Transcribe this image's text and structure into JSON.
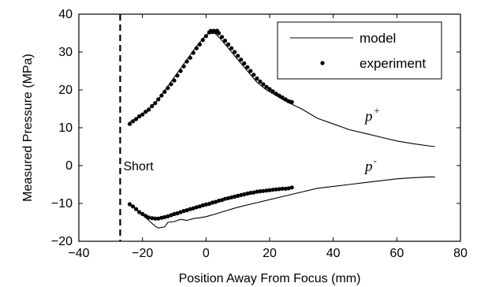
{
  "chart_data": {
    "type": "line",
    "title": "",
    "xlabel": "Position Away From Focus (mm)",
    "ylabel": "Measured Pressure (MPa)",
    "xlim": [
      -40,
      80
    ],
    "ylim": [
      -20,
      40
    ],
    "xticks": [
      -40,
      -20,
      0,
      20,
      40,
      60,
      80
    ],
    "yticks": [
      -20,
      -10,
      0,
      10,
      20,
      30,
      40
    ],
    "grid": false,
    "legend": {
      "position": "top-right",
      "entries": [
        "model",
        "experiment"
      ]
    },
    "series": [
      {
        "name": "model",
        "style": "line",
        "segments": [
          [
            [
              -24,
              11.5
            ],
            [
              -21,
              13
            ],
            [
              -18,
              15
            ],
            [
              -15,
              17.5
            ],
            [
              -12,
              21
            ],
            [
              -9,
              24.5
            ],
            [
              -6,
              28
            ],
            [
              -3,
              31.5
            ],
            [
              0,
              34.5
            ],
            [
              2,
              35.5
            ],
            [
              4,
              34
            ],
            [
              7,
              31
            ],
            [
              10,
              28
            ],
            [
              13,
              25
            ],
            [
              16,
              22
            ],
            [
              19,
              20
            ],
            [
              22,
              18.5
            ],
            [
              25,
              17
            ],
            [
              30,
              15
            ],
            [
              35,
              12.5
            ],
            [
              40,
              11
            ],
            [
              45,
              9.5
            ],
            [
              50,
              8.5
            ],
            [
              55,
              7.5
            ],
            [
              60,
              6.5
            ],
            [
              65,
              5.8
            ],
            [
              70,
              5.2
            ],
            [
              72,
              5
            ]
          ],
          [
            [
              -24,
              -10.5
            ],
            [
              -22,
              -11.5
            ],
            [
              -20,
              -13
            ],
            [
              -18,
              -14.5
            ],
            [
              -16,
              -16
            ],
            [
              -15,
              -16.5
            ],
            [
              -13,
              -16.2
            ],
            [
              -12,
              -15
            ],
            [
              -10,
              -14.8
            ],
            [
              -8,
              -14.2
            ],
            [
              -6,
              -14.5
            ],
            [
              -4,
              -14
            ],
            [
              -2,
              -13.8
            ],
            [
              0,
              -13.5
            ],
            [
              3,
              -12.8
            ],
            [
              6,
              -12
            ],
            [
              10,
              -11
            ],
            [
              15,
              -10
            ],
            [
              20,
              -9
            ],
            [
              25,
              -8
            ],
            [
              30,
              -7
            ],
            [
              35,
              -6
            ],
            [
              40,
              -5.5
            ],
            [
              45,
              -5
            ],
            [
              50,
              -4.5
            ],
            [
              55,
              -4
            ],
            [
              60,
              -3.5
            ],
            [
              65,
              -3.2
            ],
            [
              70,
              -3
            ],
            [
              72,
              -3
            ]
          ]
        ]
      },
      {
        "name": "experiment",
        "style": "markers",
        "segments": [
          [
            [
              -24,
              11
            ],
            [
              -23,
              11.7
            ],
            [
              -22,
              12.3
            ],
            [
              -21,
              13
            ],
            [
              -20,
              13.5
            ],
            [
              -19,
              14.2
            ],
            [
              -18,
              14.8
            ],
            [
              -17,
              15.7
            ],
            [
              -16,
              16.5
            ],
            [
              -15,
              17.5
            ],
            [
              -14,
              18.5
            ],
            [
              -13,
              19.5
            ],
            [
              -12,
              20.5
            ],
            [
              -11,
              21.5
            ],
            [
              -10,
              22.5
            ],
            [
              -9,
              23.8
            ],
            [
              -8,
              25
            ],
            [
              -7,
              26.2
            ],
            [
              -6,
              27.5
            ],
            [
              -5,
              28.5
            ],
            [
              -4,
              29.8
            ],
            [
              -3,
              31
            ],
            [
              -2,
              32
            ],
            [
              -1,
              33.2
            ],
            [
              0,
              34.2
            ],
            [
              1,
              35.2
            ],
            [
              1.5,
              35.6
            ],
            [
              2,
              35.3
            ],
            [
              2.5,
              35.6
            ],
            [
              3,
              35.3
            ],
            [
              3.5,
              35.6
            ],
            [
              4,
              35
            ],
            [
              5,
              34
            ],
            [
              6,
              33
            ],
            [
              7,
              32
            ],
            [
              8,
              31
            ],
            [
              9,
              30
            ],
            [
              10,
              29
            ],
            [
              11,
              28
            ],
            [
              12,
              27
            ],
            [
              13,
              26
            ],
            [
              14,
              25
            ],
            [
              15,
              24
            ],
            [
              16,
              23
            ],
            [
              17,
              22.2
            ],
            [
              18,
              21.5
            ],
            [
              19,
              20.8
            ],
            [
              20,
              20.2
            ],
            [
              21,
              19.6
            ],
            [
              22,
              19
            ],
            [
              23,
              18.5
            ],
            [
              24,
              18
            ],
            [
              25,
              17.5
            ],
            [
              26,
              17
            ],
            [
              27,
              16.8
            ]
          ],
          [
            [
              -24,
              -10.2
            ],
            [
              -23,
              -10.8
            ],
            [
              -22,
              -11.5
            ],
            [
              -21,
              -12.3
            ],
            [
              -20,
              -12.8
            ],
            [
              -19,
              -13.3
            ],
            [
              -18,
              -13.7
            ],
            [
              -17,
              -13.9
            ],
            [
              -16,
              -14
            ],
            [
              -15,
              -14
            ],
            [
              -14,
              -13.8
            ],
            [
              -13,
              -13.6
            ],
            [
              -12,
              -13.4
            ],
            [
              -11,
              -13.1
            ],
            [
              -10,
              -12.8
            ],
            [
              -9,
              -12.6
            ],
            [
              -8,
              -12.3
            ],
            [
              -7,
              -12
            ],
            [
              -6,
              -11.8
            ],
            [
              -5,
              -11.5
            ],
            [
              -4,
              -11.3
            ],
            [
              -3,
              -11
            ],
            [
              -2,
              -10.8
            ],
            [
              -1,
              -10.5
            ],
            [
              0,
              -10.3
            ],
            [
              1,
              -10.1
            ],
            [
              2,
              -9.8
            ],
            [
              3,
              -9.6
            ],
            [
              4,
              -9.3
            ],
            [
              5,
              -9.1
            ],
            [
              6,
              -8.8
            ],
            [
              7,
              -8.6
            ],
            [
              8,
              -8.4
            ],
            [
              9,
              -8.2
            ],
            [
              10,
              -8
            ],
            [
              11,
              -7.8
            ],
            [
              12,
              -7.6
            ],
            [
              13,
              -7.4
            ],
            [
              14,
              -7.2
            ],
            [
              15,
              -7.1
            ],
            [
              16,
              -6.9
            ],
            [
              17,
              -6.8
            ],
            [
              18,
              -6.7
            ],
            [
              19,
              -6.6
            ],
            [
              20,
              -6.5
            ],
            [
              21,
              -6.4
            ],
            [
              22,
              -6.3
            ],
            [
              23,
              -6.2
            ],
            [
              24,
              -6.1
            ],
            [
              25,
              -6.1
            ],
            [
              26,
              -6
            ],
            [
              27,
              -5.8
            ]
          ]
        ]
      }
    ],
    "reference_lines": [
      {
        "orientation": "vertical",
        "x": -27,
        "style": "dashed"
      }
    ],
    "annotations": [
      {
        "text": "Short",
        "x": -26,
        "y": 0
      },
      {
        "text": "p",
        "superscript": "+",
        "x": 50,
        "y": 11.8
      },
      {
        "text": "p",
        "superscript": "-",
        "x": 50,
        "y": -1.5
      }
    ]
  }
}
